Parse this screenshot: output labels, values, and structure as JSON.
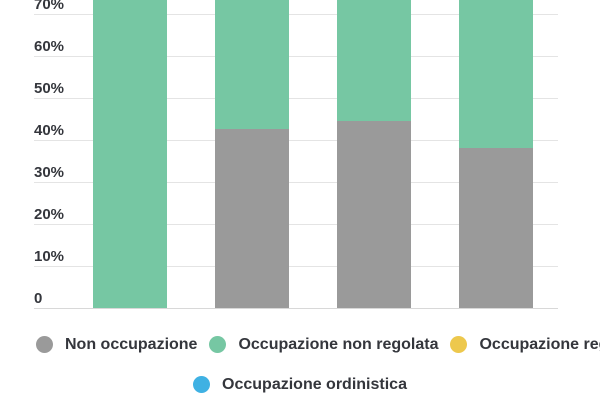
{
  "colors": {
    "non_occupazione": "#9a9a9a",
    "occupazione_non_regolata": "#76c7a3",
    "occupazione_regolata": "#edc84d",
    "occupazione_ordinistica": "#3fb1e3",
    "gridline": "#e4e4e4",
    "baseline": "#d8d8d8",
    "axis_text": "#34363c",
    "background": "#ffffff"
  },
  "chart_data": {
    "type": "bar",
    "stacked": true,
    "orientation": "vertical",
    "title": "",
    "xlabel": "",
    "ylabel": "",
    "note": "chart is cropped at the top edge; all four stacked bars extend above the visible area (green segments cut off at ~73%)",
    "visible_top_pct": 73.3,
    "n_bars": 4,
    "x_tick_labels_visible": false,
    "grid": true,
    "y_axis": {
      "ticks": [
        {
          "label": "0",
          "value": 0
        },
        {
          "label": "10%",
          "value": 10
        },
        {
          "label": "20%",
          "value": 20
        },
        {
          "label": "30%",
          "value": 30
        },
        {
          "label": "40%",
          "value": 40
        },
        {
          "label": "50%",
          "value": 50
        },
        {
          "label": "60%",
          "value": 60
        },
        {
          "label": "70%",
          "value": 70
        }
      ]
    },
    "series": [
      {
        "name": "Non occupazione",
        "color": "#9a9a9a",
        "values_pct": [
          0,
          42.5,
          44.5,
          38
        ]
      },
      {
        "name": "Occupazione non regolata",
        "color": "#76c7a3",
        "values_pct_visible_top": [
          73.3,
          73.3,
          73.3,
          73.3
        ],
        "cropped": true
      },
      {
        "name": "Occupazione regolata",
        "color": "#edc84d",
        "values_pct": "not visible in cropped area"
      },
      {
        "name": "Occupazione ordinistica",
        "color": "#3fb1e3",
        "values_pct": "not visible in cropped area"
      }
    ],
    "legend": {
      "position": "bottom",
      "rows": [
        [
          {
            "label": "Non occupazione",
            "color": "#9a9a9a"
          },
          {
            "label": "Occupazione non regolata",
            "color": "#76c7a3"
          },
          {
            "label": "Occupazione regolata",
            "color": "#edc84d"
          }
        ],
        [
          {
            "label": "Occupazione ordinistica",
            "color": "#3fb1e3"
          }
        ]
      ]
    }
  }
}
